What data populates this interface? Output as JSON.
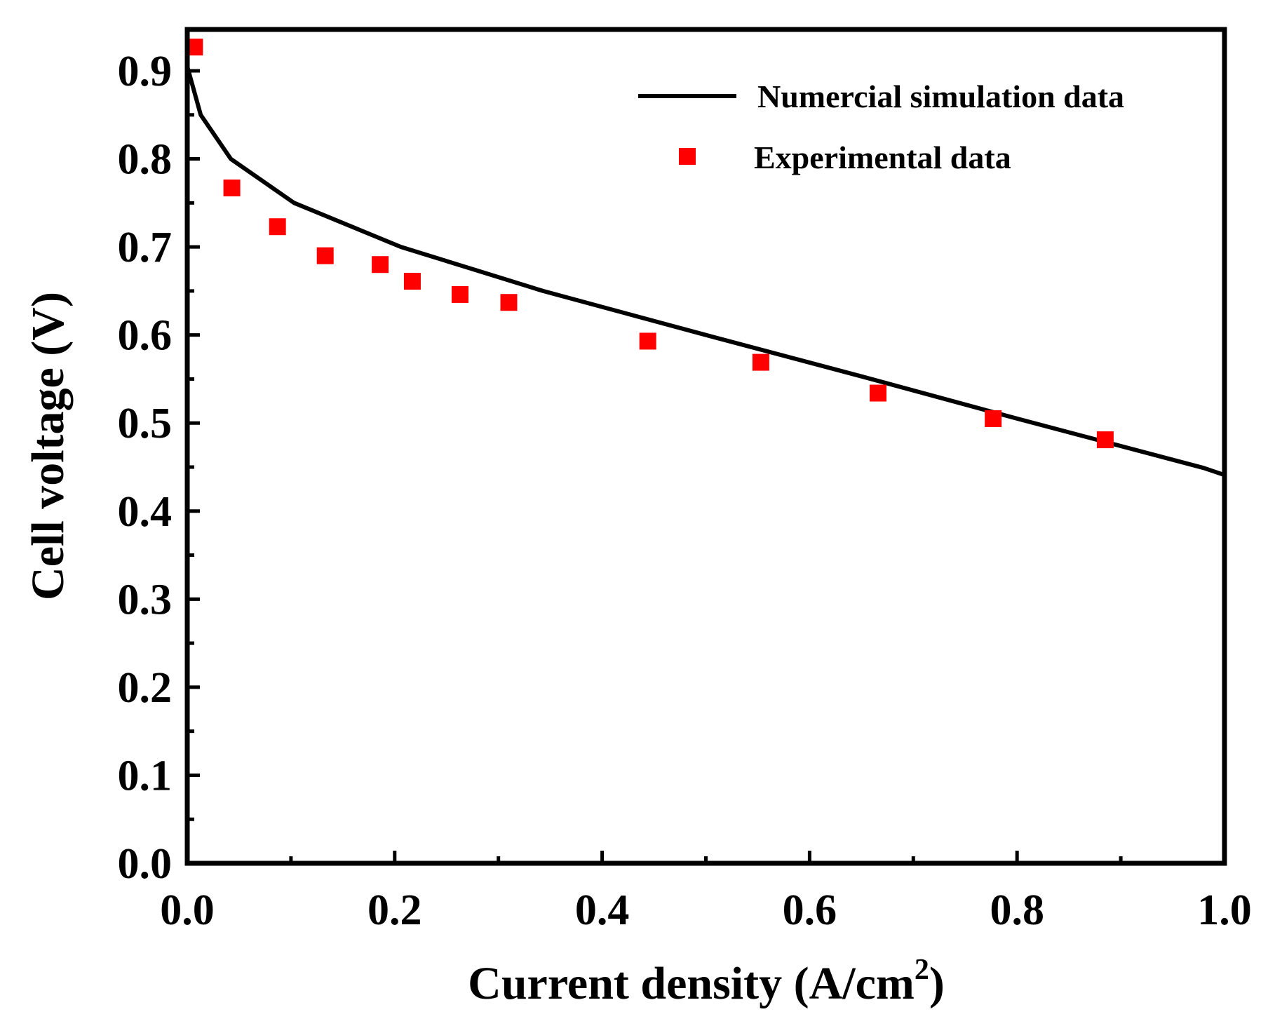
{
  "chart_data": {
    "type": "line",
    "title": "",
    "xlabel": "Current density (A/cm",
    "xlabel_sup": "2",
    "xlabel_close": ")",
    "ylabel": "Cell voltage (V)",
    "xlim": [
      0.0,
      1.0
    ],
    "ylim": [
      0.0,
      0.95
    ],
    "x_ticks": [
      0.0,
      0.2,
      0.4,
      0.6,
      0.8,
      1.0
    ],
    "x_tick_labels": [
      "0.0",
      "0.2",
      "0.4",
      "0.6",
      "0.8",
      "1.0"
    ],
    "y_ticks": [
      0.0,
      0.1,
      0.2,
      0.3,
      0.4,
      0.5,
      0.6,
      0.7,
      0.8,
      0.9
    ],
    "y_tick_labels": [
      "0.0",
      "0.1",
      "0.2",
      "0.3",
      "0.4",
      "0.5",
      "0.6",
      "0.7",
      "0.8",
      "0.9"
    ],
    "grid": false,
    "legend_position": "top-right",
    "series": [
      {
        "name": "Numercial simulation data",
        "kind": "line",
        "color": "#000000",
        "x": [
          0.0,
          0.013,
          0.042,
          0.103,
          0.206,
          0.343,
          0.5,
          0.65,
          0.8,
          0.98,
          1.0
        ],
        "y": [
          0.905,
          0.85,
          0.8,
          0.75,
          0.7,
          0.65,
          0.6,
          0.553,
          0.505,
          0.449,
          0.441
        ]
      },
      {
        "name": "Experimental data",
        "kind": "scatter",
        "marker": "square",
        "color": "#ff0000",
        "x": [
          0.007,
          0.043,
          0.087,
          0.133,
          0.186,
          0.217,
          0.263,
          0.31,
          0.444,
          0.553,
          0.666,
          0.777,
          0.885
        ],
        "y": [
          0.927,
          0.767,
          0.723,
          0.69,
          0.68,
          0.661,
          0.646,
          0.637,
          0.593,
          0.569,
          0.534,
          0.505,
          0.481
        ]
      }
    ]
  }
}
